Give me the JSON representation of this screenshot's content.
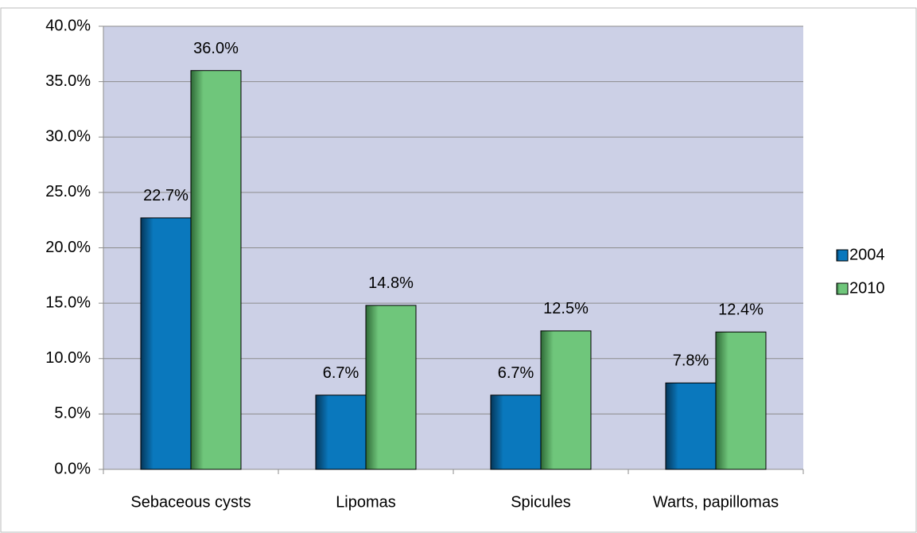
{
  "chart_data": {
    "type": "bar",
    "categories": [
      "Sebaceous cysts",
      "Lipomas",
      "Spicules",
      "Warts, papillomas"
    ],
    "series": [
      {
        "name": "2004",
        "color": "#0a78bd",
        "values": [
          22.7,
          6.7,
          6.7,
          7.8
        ],
        "value_labels": [
          "22.7%",
          "6.7%",
          "6.7%",
          "7.8%"
        ]
      },
      {
        "name": "2010",
        "color": "#6fc67b",
        "values": [
          36.0,
          14.8,
          12.5,
          12.4
        ],
        "value_labels": [
          "36.0%",
          "14.8%",
          "12.5%",
          "12.4%"
        ]
      }
    ],
    "ylim": [
      0,
      40
    ],
    "yticks": [
      {
        "value": 0,
        "label": "0.0%"
      },
      {
        "value": 5,
        "label": "5.0%"
      },
      {
        "value": 10,
        "label": "10.0%"
      },
      {
        "value": 15,
        "label": "15.0%"
      },
      {
        "value": 20,
        "label": "20.0%"
      },
      {
        "value": 25,
        "label": "25.0%"
      },
      {
        "value": 30,
        "label": "30.0%"
      },
      {
        "value": 35,
        "label": "35.0%"
      },
      {
        "value": 40,
        "label": "40.0%"
      }
    ],
    "grid": true,
    "legend": "right",
    "plot_background": "#ccd0e6"
  }
}
